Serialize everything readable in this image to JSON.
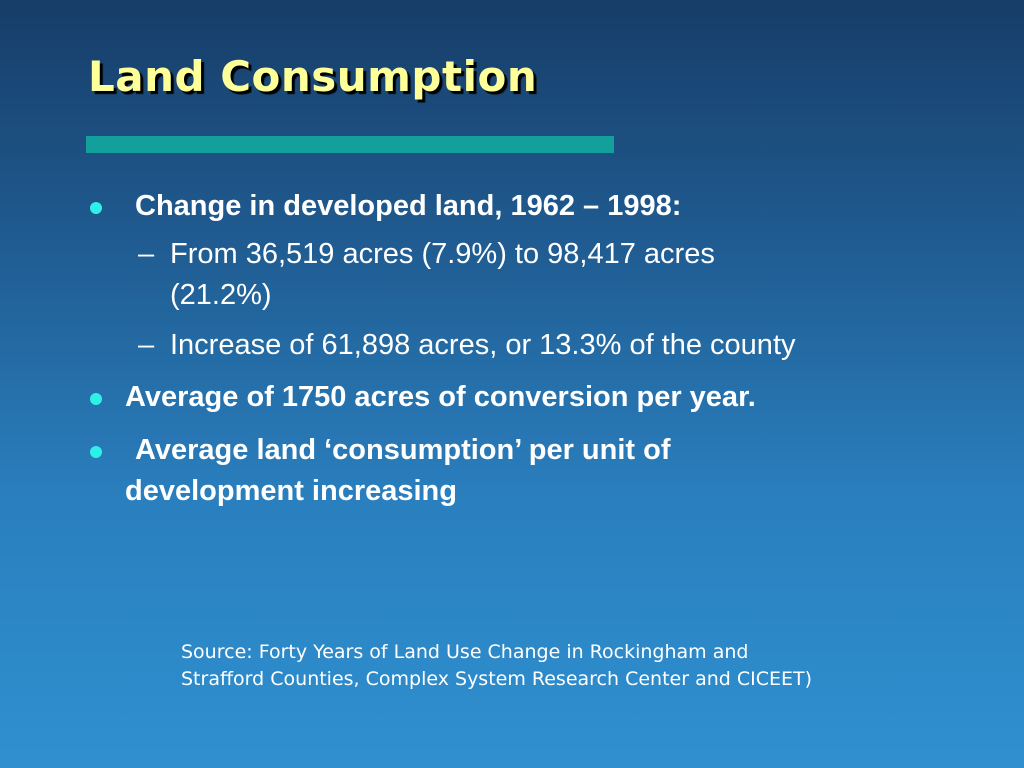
{
  "title": "Land Consumption",
  "colors": {
    "title": "#ffff99",
    "rule": "#13a09d",
    "bullet": "#2ff0e8",
    "text": "#ffffff"
  },
  "bullets": [
    {
      "line1": "Change in developed land, 1962 – 1998:",
      "sub": [
        {
          "dash": "–",
          "line1": "From 36,519 acres (7.9%) to 98,417 acres",
          "line2": "(21.2%)"
        },
        {
          "dash": "–",
          "line1": "Increase of 61,898 acres, or 13.3% of the county"
        }
      ]
    },
    {
      "line1": "Average of 1750 acres of conversion per year."
    },
    {
      "line1": "Average land ‘consumption’ per unit of",
      "line2": "development increasing"
    }
  ],
  "source": "Source:  Forty Years of Land Use Change in Rockingham and Strafford Counties, Complex System Research Center and CICEET)"
}
